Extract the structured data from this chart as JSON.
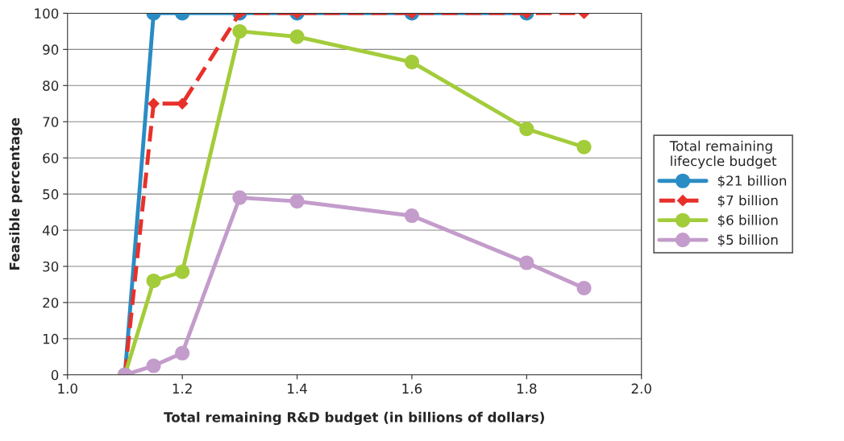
{
  "chart_data": {
    "type": "line",
    "xlabel": "Total remaining R&D budget (in billions of dollars)",
    "ylabel": "Feasible percentage",
    "legend_title": "Total remaining lifecycle budget",
    "xlim": [
      1.0,
      2.0
    ],
    "xticks": [
      {
        "value": 1.0,
        "label": "1.0"
      },
      1.2,
      1.4,
      1.6,
      1.8,
      {
        "value": 2.0,
        "label": "2.0"
      }
    ],
    "ylim": [
      0,
      100
    ],
    "yticks": [
      0,
      10,
      20,
      30,
      40,
      50,
      60,
      70,
      80,
      90,
      100
    ],
    "grid": "y",
    "legend": "right",
    "series": [
      {
        "name": "$21 billion",
        "color": "#2a8cc4",
        "marker": "circle",
        "line_style": "solid",
        "x": [
          1.1,
          1.15,
          1.2,
          1.3,
          1.4,
          1.6,
          1.8
        ],
        "values": [
          0,
          100,
          100,
          100,
          100,
          100,
          100
        ]
      },
      {
        "name": "$7 billion",
        "color": "#e8302a",
        "marker": "diamond",
        "line_style": "dashed",
        "x": [
          1.1,
          1.15,
          1.2,
          1.3,
          1.4,
          1.6,
          1.8,
          1.9
        ],
        "values": [
          0,
          75,
          75,
          100,
          100,
          100,
          100,
          100
        ]
      },
      {
        "name": "$6 billion",
        "color": "#a3cc3a",
        "marker": "circle",
        "line_style": "solid",
        "x": [
          1.1,
          1.15,
          1.2,
          1.3,
          1.4,
          1.6,
          1.8,
          1.9
        ],
        "values": [
          0,
          26,
          28.5,
          95,
          93.5,
          86.5,
          68,
          63
        ]
      },
      {
        "name": "$5 billion",
        "color": "#c39ccb",
        "marker": "circle",
        "line_style": "solid",
        "x": [
          1.1,
          1.15,
          1.2,
          1.3,
          1.4,
          1.6,
          1.8,
          1.9
        ],
        "values": [
          0,
          2.5,
          6,
          49,
          48,
          44,
          31,
          24
        ]
      }
    ]
  }
}
